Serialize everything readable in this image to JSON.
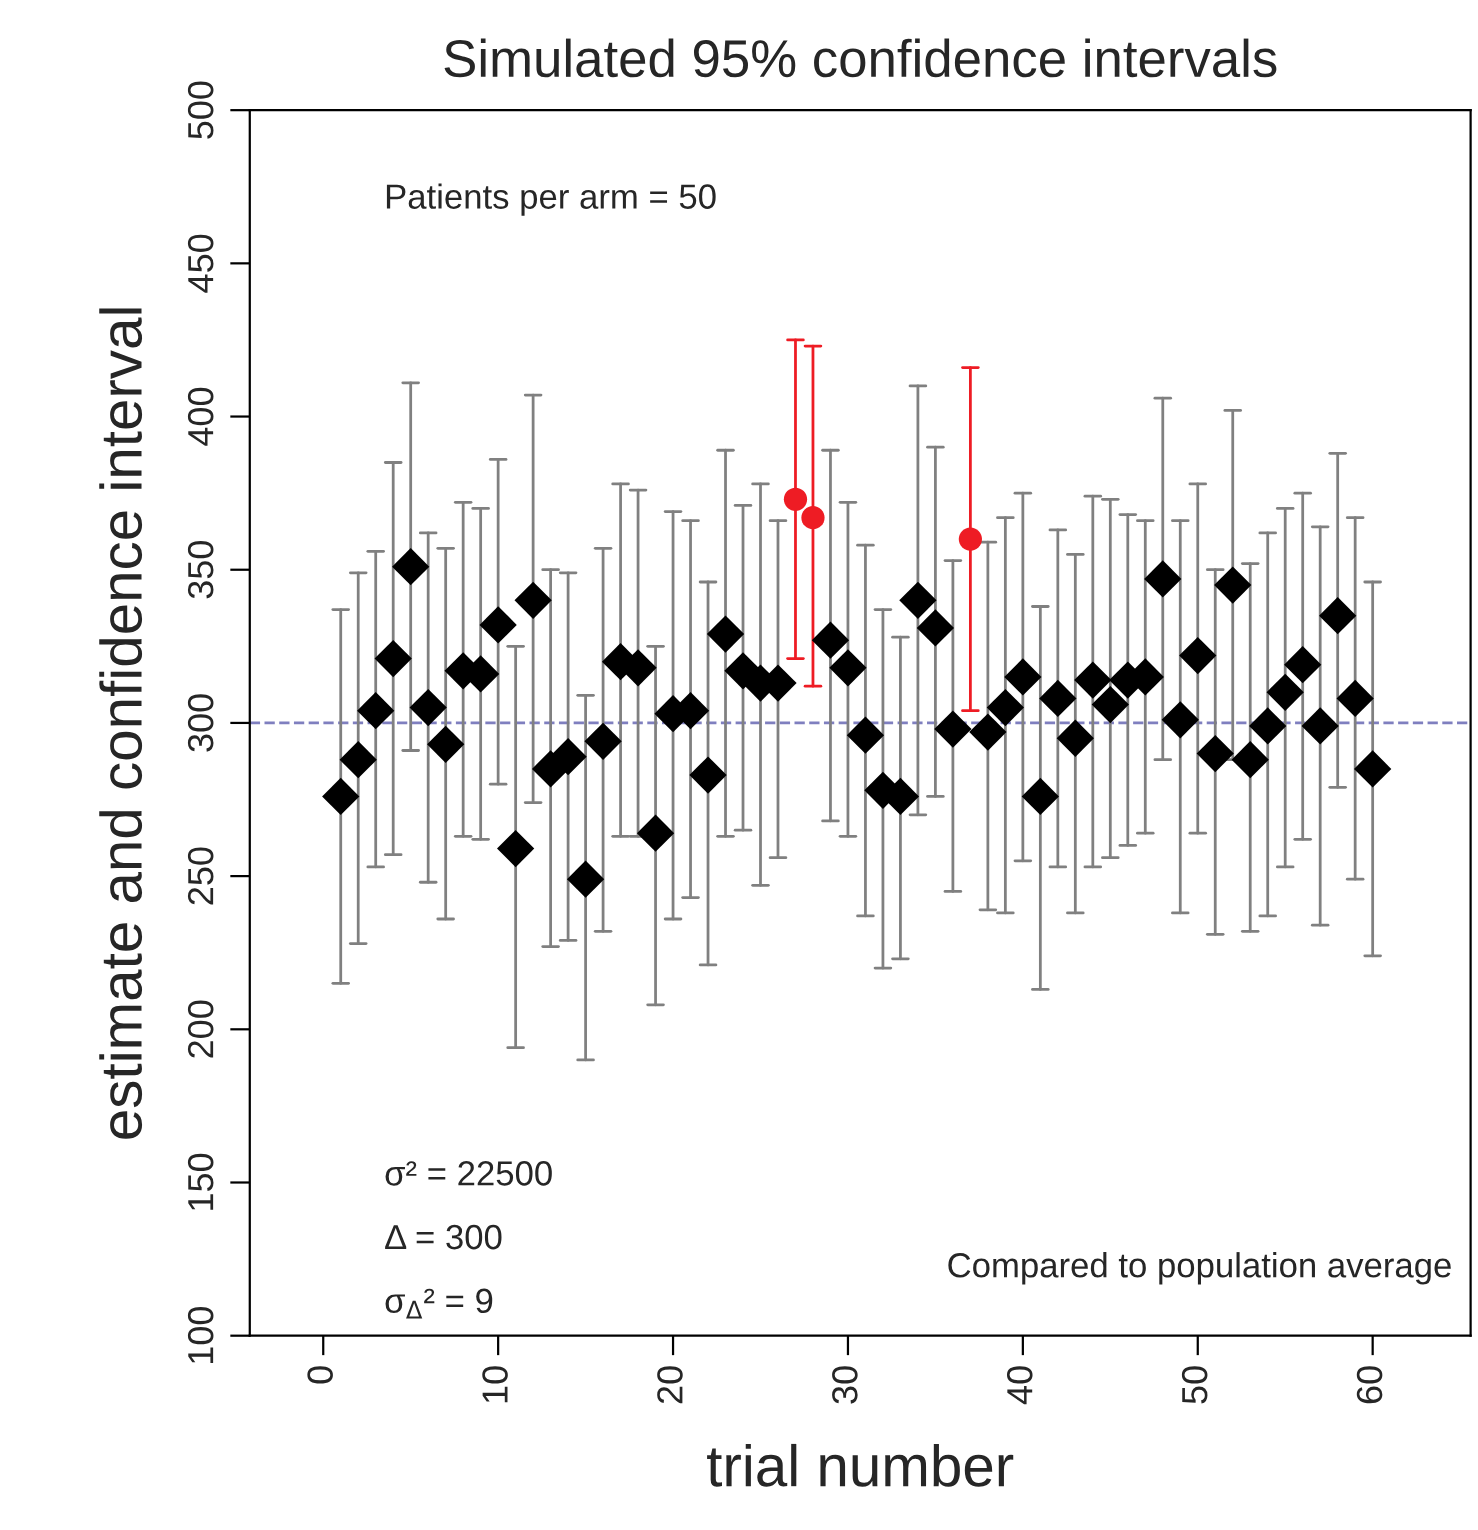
{
  "chart_data": {
    "type": "scatter",
    "title": "Simulated 95% confidence intervals",
    "xlabel": "trial number",
    "ylabel": "estimate and confidence interval",
    "xlim": [
      -4.2,
      65.6
    ],
    "xticks": [
      0,
      10,
      20,
      30,
      40,
      50,
      60
    ],
    "ylim": [
      100,
      500
    ],
    "yticks": [
      100,
      150,
      200,
      250,
      300,
      350,
      400,
      450,
      500
    ],
    "grid": false,
    "legend": false,
    "series": [
      {
        "marker": "diamond",
        "color": "#000000",
        "x": [
          1,
          2,
          3,
          4,
          5,
          6,
          7,
          8,
          9,
          10,
          11,
          12,
          13,
          14,
          15,
          16,
          17,
          18,
          19,
          20,
          21,
          22,
          23,
          24,
          25,
          26,
          29,
          30,
          31,
          32,
          33,
          34,
          35,
          36,
          38,
          39,
          40,
          41,
          42,
          43,
          44,
          45,
          46,
          47,
          48,
          49,
          50,
          51,
          52,
          53,
          54,
          55,
          56,
          57,
          58,
          59,
          60
        ],
        "values": [
          276,
          288,
          304,
          321,
          351,
          305,
          293,
          317,
          316,
          332,
          259,
          340,
          285,
          289,
          249,
          294,
          320,
          318,
          264,
          303,
          304,
          283,
          329,
          317,
          313,
          313,
          327,
          318,
          296,
          278,
          276,
          340,
          331,
          298,
          297,
          305,
          315,
          276,
          308,
          295,
          314,
          306,
          314,
          315,
          347,
          301,
          322,
          290,
          345,
          288,
          299,
          310,
          319,
          299,
          335,
          308,
          285
        ],
        "errors": [
          [
            215,
            337
          ],
          [
            228,
            349
          ],
          [
            253,
            356
          ],
          [
            257,
            385
          ],
          [
            291,
            411
          ],
          [
            248,
            362
          ],
          [
            236,
            357
          ],
          [
            263,
            372
          ],
          [
            262,
            370
          ],
          [
            280,
            386
          ],
          [
            194,
            325
          ],
          [
            274,
            407
          ],
          [
            227,
            350
          ],
          [
            229,
            349
          ],
          [
            190,
            309
          ],
          [
            232,
            357
          ],
          [
            263,
            378
          ],
          [
            263,
            376
          ],
          [
            208,
            325
          ],
          [
            236,
            369
          ],
          [
            243,
            366
          ],
          [
            221,
            346
          ],
          [
            263,
            389
          ],
          [
            265,
            371
          ],
          [
            247,
            378
          ],
          [
            256,
            366
          ],
          [
            268,
            389
          ],
          [
            263,
            372
          ],
          [
            237,
            358
          ],
          [
            220,
            337
          ],
          [
            223,
            328
          ],
          [
            270,
            410
          ],
          [
            276,
            390
          ],
          [
            245,
            353
          ],
          [
            239,
            359
          ],
          [
            238,
            367
          ],
          [
            255,
            375
          ],
          [
            213,
            338
          ],
          [
            253,
            363
          ],
          [
            238,
            355
          ],
          [
            253,
            374
          ],
          [
            256,
            373
          ],
          [
            260,
            368
          ],
          [
            264,
            366
          ],
          [
            288,
            406
          ],
          [
            238,
            366
          ],
          [
            264,
            378
          ],
          [
            231,
            350
          ],
          [
            288,
            402
          ],
          [
            232,
            352
          ],
          [
            237,
            362
          ],
          [
            253,
            370
          ],
          [
            262,
            375
          ],
          [
            234,
            364
          ],
          [
            279,
            388
          ],
          [
            249,
            367
          ],
          [
            224,
            346
          ]
        ]
      },
      {
        "marker": "circle",
        "color": "#ee1c24",
        "x": [
          27,
          28,
          37
        ],
        "values": [
          373,
          367,
          360
        ],
        "errors": [
          [
            321,
            425
          ],
          [
            312,
            423
          ],
          [
            304,
            416
          ]
        ]
      }
    ],
    "ref_lines": [
      {
        "axis": "y",
        "value": 300,
        "color": "#7f7fbf",
        "line_style": "dashed"
      }
    ],
    "annotations": [
      "Patients per arm = 50",
      "σ² = 22500",
      "Δ = 300",
      "σ$_{Δ}$² = 9",
      "Compared to population average"
    ]
  }
}
